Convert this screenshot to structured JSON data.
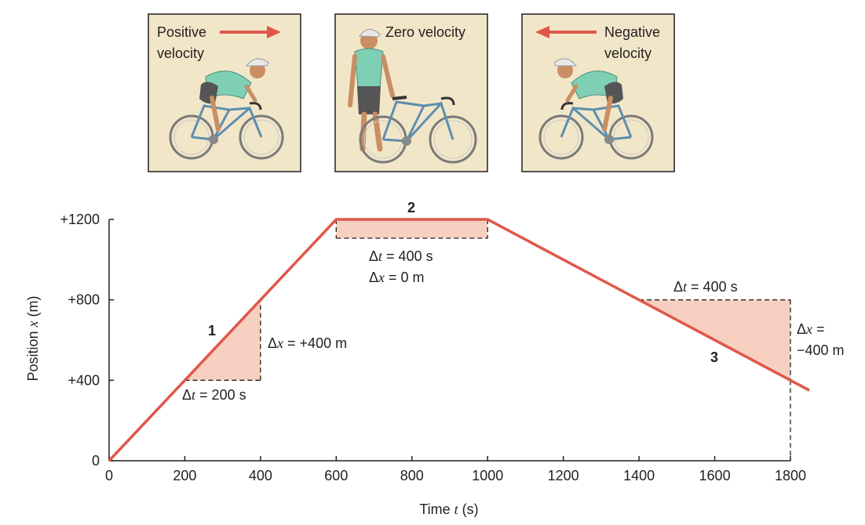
{
  "panels": [
    {
      "line1": "Positive",
      "line2": "velocity",
      "direction": "right"
    },
    {
      "label": "Zero velocity",
      "direction": "none"
    },
    {
      "line1": "Negative",
      "line2": "velocity",
      "direction": "left"
    }
  ],
  "colors": {
    "line": "#e0574a",
    "fill": "#f6cfc0",
    "panel_bg": "#f2e6c8",
    "arrow": "#e0574a",
    "jersey": "#7fcfb4",
    "shorts": "#555555",
    "bike": "#5c8fb0",
    "skin": "#c98e63"
  },
  "chart_data": {
    "type": "line",
    "x": [
      0,
      600,
      1000,
      1850
    ],
    "y": [
      0,
      1200,
      1200,
      350
    ],
    "xlim": [
      0,
      1800
    ],
    "ylim": [
      0,
      1200
    ],
    "xticks": [
      0,
      200,
      400,
      600,
      800,
      1000,
      1200,
      1400,
      1600,
      1800
    ],
    "yticks": [
      {
        "value": 0,
        "label": "0"
      },
      {
        "value": 400,
        "label": "+400"
      },
      {
        "value": 800,
        "label": "+800"
      },
      {
        "value": 1200,
        "label": "+1200"
      }
    ],
    "xlabel": {
      "pre": "Time ",
      "var": "t",
      "post": " (s)"
    },
    "ylabel": {
      "pre": "Position ",
      "var": "x",
      "post": " (m)"
    },
    "segments": [
      {
        "number": "1",
        "t0": 200,
        "t1": 400,
        "x0": 400,
        "x1": 800,
        "dt_label": " = 200 s",
        "dx_label": " = +400 m"
      },
      {
        "number": "2",
        "t0": 600,
        "t1": 1000,
        "x0": 1200,
        "x1": 1200,
        "dt_label": " = 400 s",
        "dx_label": " = 0 m"
      },
      {
        "number": "3",
        "t0": 1400,
        "t1": 1800,
        "x0": 800,
        "x1": 400,
        "dt_label": " = 400 s",
        "dx_label_line1": " =",
        "dx_label_line2": "−400 m"
      }
    ],
    "symbols": {
      "delta": "Δ",
      "t": "t",
      "x": "x"
    }
  }
}
